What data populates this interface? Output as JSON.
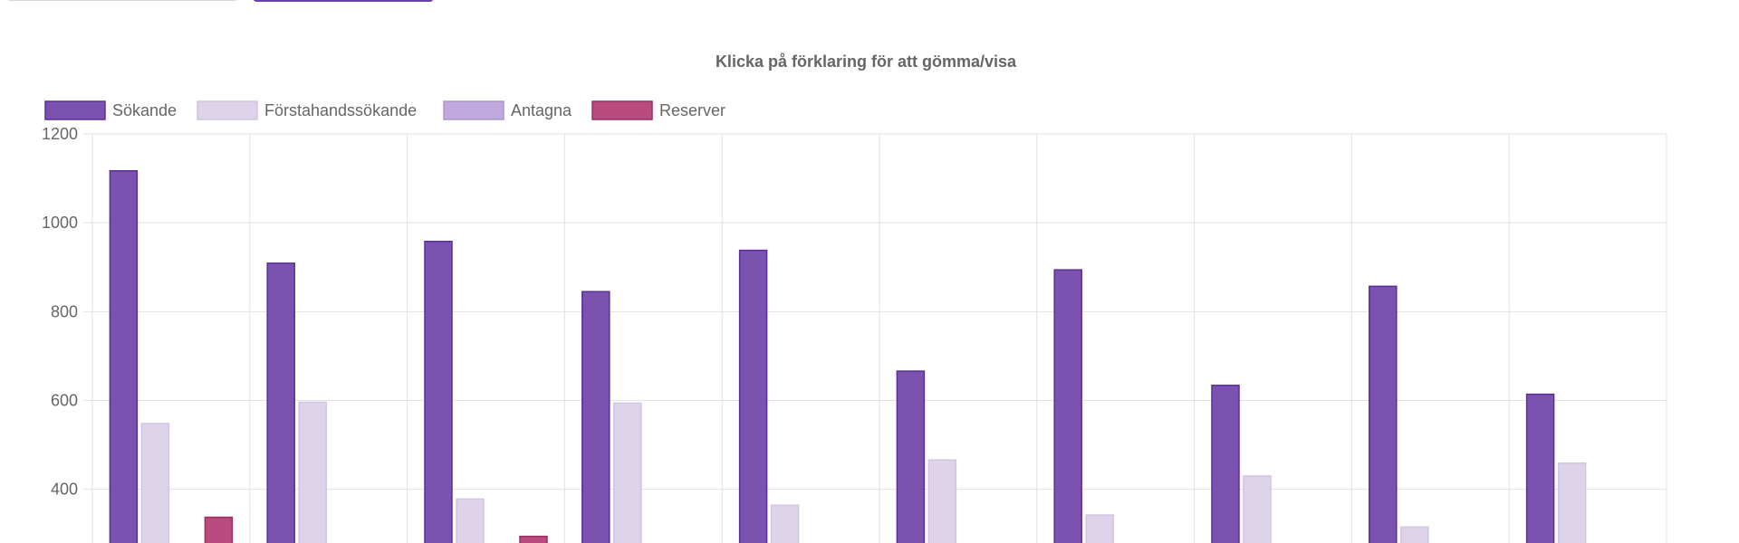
{
  "tabs": [
    {
      "name": "tab-left",
      "label": ""
    },
    {
      "name": "tab-right",
      "label": ""
    }
  ],
  "chart_data": {
    "type": "bar",
    "title": "Klicka på förklaring för att gömma/visa",
    "xlabel": "",
    "ylabel": "",
    "ylim": [
      0,
      1200
    ],
    "yticks": [
      400,
      600,
      800,
      1000,
      1200
    ],
    "ytick_labels": [
      "400",
      "600",
      "800",
      "1000",
      "1200"
    ],
    "grid": true,
    "legend_position": "top-left",
    "categories": [
      "",
      "",
      "",
      "",
      "",
      "",
      "",
      "",
      "",
      ""
    ],
    "series": [
      {
        "name": "Sökande",
        "color": "#7b52b0",
        "border": "#5b2f9a",
        "values": [
          1117,
          909,
          958,
          845,
          938,
          666,
          894,
          634,
          857,
          614
        ]
      },
      {
        "name": "Förstahandssökande",
        "color": "#ded4ea",
        "border": "#d2c4e4",
        "values": [
          548,
          596,
          378,
          594,
          364,
          466,
          342,
          430,
          315,
          459
        ]
      },
      {
        "name": "Antagna",
        "color": "#c0aadd",
        "border": "#ad95d0",
        "values": [
          null,
          null,
          null,
          null,
          null,
          null,
          null,
          null,
          null,
          null
        ]
      },
      {
        "name": "Reserver",
        "color": "#b84c7e",
        "border": "#9a2f63",
        "values": [
          337,
          null,
          294,
          null,
          null,
          null,
          null,
          null,
          null,
          null
        ]
      }
    ]
  }
}
